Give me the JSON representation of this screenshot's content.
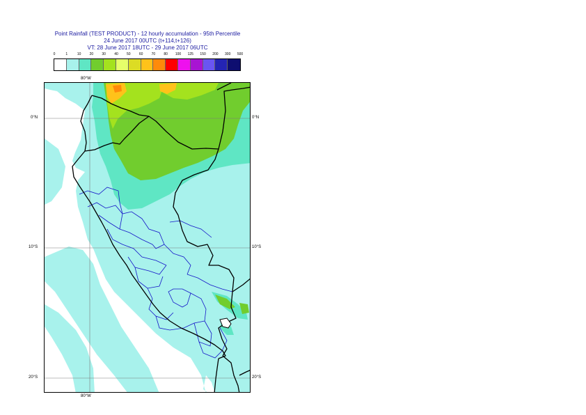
{
  "title": {
    "line1": "Point Rainfall (TEST PRODUCT) - 12 hourly accumulation - 95th Percentile",
    "line2": "24 June 2017 00UTC (t+114,t+126)",
    "line3": "VT: 28 June 2017 18UTC - 29 June 2017 06UTC"
  },
  "legend": {
    "thresholds": [
      "0",
      "1",
      "10",
      "20",
      "30",
      "40",
      "50",
      "60",
      "70",
      "80",
      "100",
      "125",
      "150",
      "200",
      "300",
      "500"
    ],
    "colors": [
      "#ffffff",
      "#a8f2ec",
      "#5fe6c4",
      "#71cd2e",
      "#a4e21e",
      "#e6ff6a",
      "#dcdc24",
      "#ffc21a",
      "#ff8a0a",
      "#ff0000",
      "#ee10ee",
      "#a814d2",
      "#6a55f2",
      "#2424b4",
      "#0e0e70"
    ]
  },
  "map": {
    "lat_labels": [
      "0°N",
      "10°S",
      "20°S"
    ],
    "lon_labels": [
      "80°W"
    ],
    "colors": {
      "light_rain": "#a8f2ec",
      "moderate_rain": "#5fe6c4",
      "heavy_rain": "#71cd2e",
      "very_heavy_rain": "#a4e21e",
      "extreme_rain": "#ffc21a",
      "peak_rain": "#ff8a0a",
      "country_border": "#000000",
      "region_border": "#1515c8",
      "gridline": "#7a7a7a"
    }
  }
}
